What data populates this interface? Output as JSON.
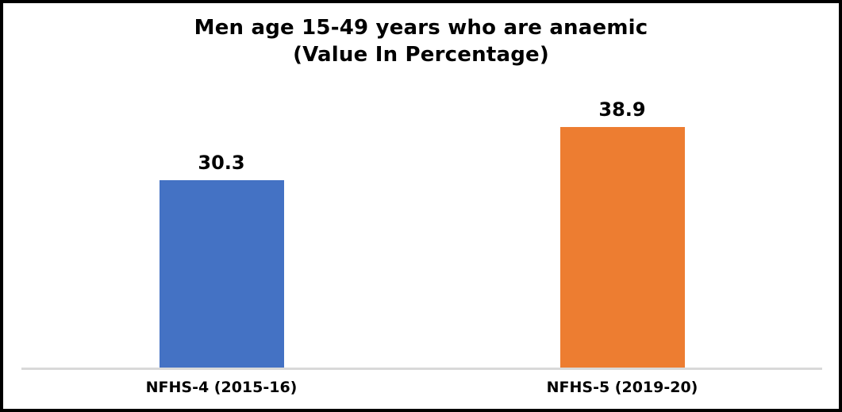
{
  "chart_data": {
    "type": "bar",
    "title": "Men age 15-49 years who are anaemic",
    "subtitle": "(Value In Percentage)",
    "categories": [
      "NFHS-4 (2015-16)",
      "NFHS-5 (2019-20)"
    ],
    "values": [
      30.3,
      38.9
    ],
    "value_labels": [
      "30.3",
      "38.9"
    ],
    "colors": [
      "#4472C4",
      "#ED7D31"
    ],
    "xlabel": "",
    "ylabel": "",
    "ylim": [
      0,
      45
    ],
    "grid": false,
    "legend_position": "none",
    "axis_line_color": "#D9D9D9",
    "background_color": "#FFFFFF",
    "border_color": "#000000"
  }
}
